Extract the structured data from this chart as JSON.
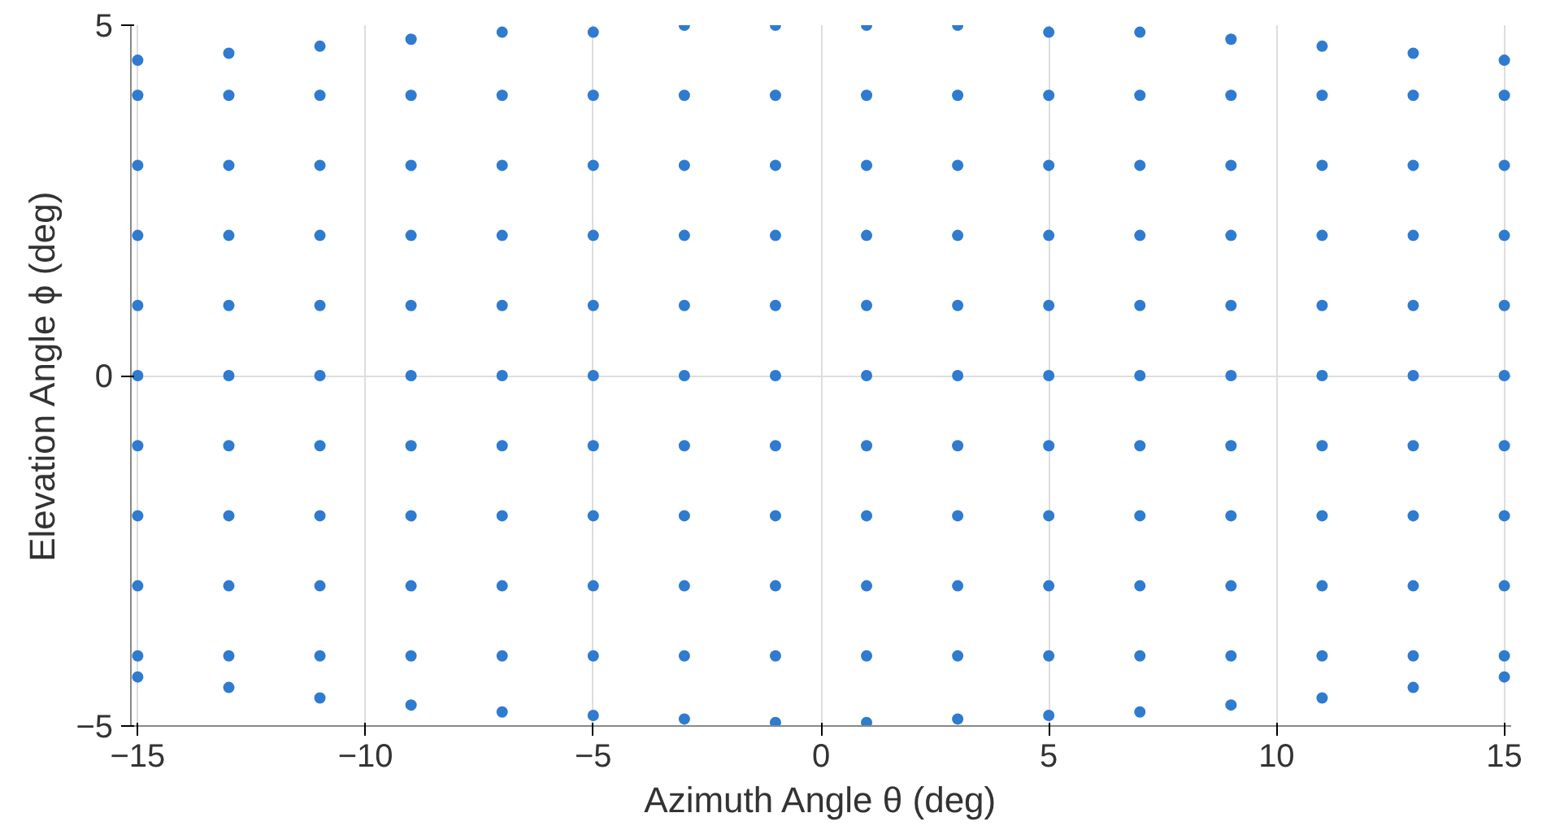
{
  "chart_data": {
    "type": "scatter",
    "xlabel": "Azimuth Angle θ (deg)",
    "ylabel": "Elevation Angle ϕ (deg)",
    "xlim": [
      -15.15,
      15.15
    ],
    "ylim": [
      -5,
      5
    ],
    "xticks": [
      -15,
      -10,
      -5,
      0,
      5,
      10,
      15
    ],
    "yticks": [
      -5,
      0,
      5
    ],
    "grid": true,
    "marker": "circle",
    "series": [
      {
        "color": "#2e7bcf",
        "x": [
          -15,
          -15,
          -15,
          -15,
          -15,
          -15,
          -15,
          -15,
          -15,
          -15,
          -15
        ],
        "values": [
          4.5,
          4,
          3,
          2,
          1,
          0,
          -1,
          -2,
          -3,
          -4,
          -4.3
        ]
      },
      {
        "color": "#2e7bcf",
        "x": [
          -13,
          -13,
          -13,
          -13,
          -13,
          -13,
          -13,
          -13,
          -13,
          -13,
          -13
        ],
        "values": [
          4.6,
          4,
          3,
          2,
          1,
          0,
          -1,
          -2,
          -3,
          -4,
          -4.45
        ]
      },
      {
        "color": "#2e7bcf",
        "x": [
          -11,
          -11,
          -11,
          -11,
          -11,
          -11,
          -11,
          -11,
          -11,
          -11,
          -11
        ],
        "values": [
          4.7,
          4,
          3,
          2,
          1,
          0,
          -1,
          -2,
          -3,
          -4,
          -4.6
        ]
      },
      {
        "color": "#2e7bcf",
        "x": [
          -9,
          -9,
          -9,
          -9,
          -9,
          -9,
          -9,
          -9,
          -9,
          -9,
          -9
        ],
        "values": [
          4.8,
          4,
          3,
          2,
          1,
          0,
          -1,
          -2,
          -3,
          -4,
          -4.7
        ]
      },
      {
        "color": "#2e7bcf",
        "x": [
          -7,
          -7,
          -7,
          -7,
          -7,
          -7,
          -7,
          -7,
          -7,
          -7,
          -7
        ],
        "values": [
          4.9,
          4,
          3,
          2,
          1,
          0,
          -1,
          -2,
          -3,
          -4,
          -4.8
        ]
      },
      {
        "color": "#2e7bcf",
        "x": [
          -5,
          -5,
          -5,
          -5,
          -5,
          -5,
          -5,
          -5,
          -5,
          -5,
          -5
        ],
        "values": [
          4.9,
          4,
          3,
          2,
          1,
          0,
          -1,
          -2,
          -3,
          -4,
          -4.85
        ]
      },
      {
        "color": "#2e7bcf",
        "x": [
          -3,
          -3,
          -3,
          -3,
          -3,
          -3,
          -3,
          -3,
          -3,
          -3,
          -3
        ],
        "values": [
          5,
          4,
          3,
          2,
          1,
          0,
          -1,
          -2,
          -3,
          -4,
          -4.9
        ]
      },
      {
        "color": "#2e7bcf",
        "x": [
          -1,
          -1,
          -1,
          -1,
          -1,
          -1,
          -1,
          -1,
          -1,
          -1,
          -1
        ],
        "values": [
          5,
          4,
          3,
          2,
          1,
          0,
          -1,
          -2,
          -3,
          -4,
          -4.95
        ]
      },
      {
        "color": "#2e7bcf",
        "x": [
          1,
          1,
          1,
          1,
          1,
          1,
          1,
          1,
          1,
          1,
          1
        ],
        "values": [
          5,
          4,
          3,
          2,
          1,
          0,
          -1,
          -2,
          -3,
          -4,
          -4.95
        ]
      },
      {
        "color": "#2e7bcf",
        "x": [
          3,
          3,
          3,
          3,
          3,
          3,
          3,
          3,
          3,
          3,
          3
        ],
        "values": [
          5,
          4,
          3,
          2,
          1,
          0,
          -1,
          -2,
          -3,
          -4,
          -4.9
        ]
      },
      {
        "color": "#2e7bcf",
        "x": [
          5,
          5,
          5,
          5,
          5,
          5,
          5,
          5,
          5,
          5,
          5
        ],
        "values": [
          4.9,
          4,
          3,
          2,
          1,
          0,
          -1,
          -2,
          -3,
          -4,
          -4.85
        ]
      },
      {
        "color": "#2e7bcf",
        "x": [
          7,
          7,
          7,
          7,
          7,
          7,
          7,
          7,
          7,
          7,
          7
        ],
        "values": [
          4.9,
          4,
          3,
          2,
          1,
          0,
          -1,
          -2,
          -3,
          -4,
          -4.8
        ]
      },
      {
        "color": "#2e7bcf",
        "x": [
          9,
          9,
          9,
          9,
          9,
          9,
          9,
          9,
          9,
          9,
          9
        ],
        "values": [
          4.8,
          4,
          3,
          2,
          1,
          0,
          -1,
          -2,
          -3,
          -4,
          -4.7
        ]
      },
      {
        "color": "#2e7bcf",
        "x": [
          11,
          11,
          11,
          11,
          11,
          11,
          11,
          11,
          11,
          11,
          11
        ],
        "values": [
          4.7,
          4,
          3,
          2,
          1,
          0,
          -1,
          -2,
          -3,
          -4,
          -4.6
        ]
      },
      {
        "color": "#2e7bcf",
        "x": [
          13,
          13,
          13,
          13,
          13,
          13,
          13,
          13,
          13,
          13,
          13
        ],
        "values": [
          4.6,
          4,
          3,
          2,
          1,
          0,
          -1,
          -2,
          -3,
          -4,
          -4.45
        ]
      },
      {
        "color": "#2e7bcf",
        "x": [
          15,
          15,
          15,
          15,
          15,
          15,
          15,
          15,
          15,
          15,
          15
        ],
        "values": [
          4.5,
          4,
          3,
          2,
          1,
          0,
          -1,
          -2,
          -3,
          -4,
          -4.3
        ]
      }
    ]
  }
}
